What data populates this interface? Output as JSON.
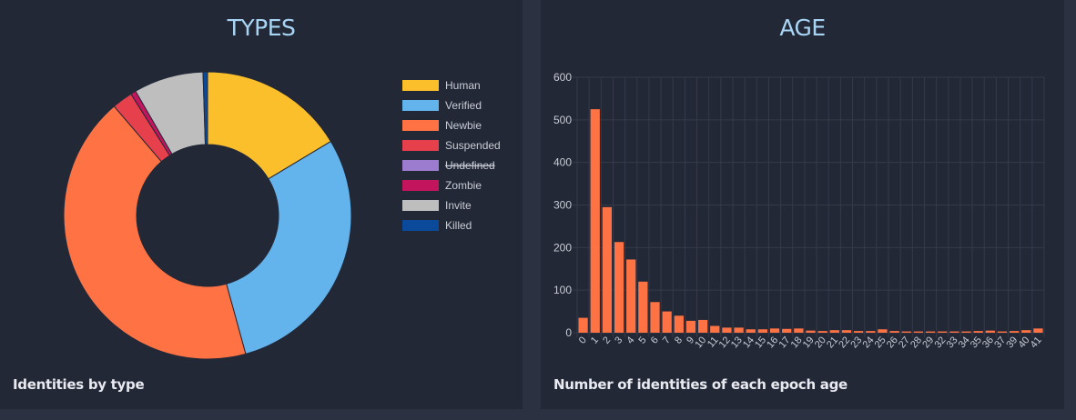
{
  "types_card": {
    "title": "TYPES",
    "caption": "Identities by type"
  },
  "age_card": {
    "title": "AGE",
    "caption": "Number of identities of each epoch age"
  },
  "chart_data": [
    {
      "type": "pie",
      "donut": true,
      "legend_position": "right",
      "labels": [
        "Human",
        "Verified",
        "Newbie",
        "Suspended",
        "Undefined",
        "Zombie",
        "Invite",
        "Killed"
      ],
      "values": [
        16.3,
        29.2,
        42.8,
        2.3,
        0,
        0.6,
        7.8,
        0.5
      ],
      "colors": [
        "#fbbf2c",
        "#63b3ed",
        "#fe7243",
        "#e7404d",
        "#9b7ccf",
        "#c2155e",
        "#bebebe",
        "#0b4a9a"
      ],
      "hidden": [
        "Undefined"
      ]
    },
    {
      "type": "bar",
      "categories": [
        "0",
        "1",
        "2",
        "3",
        "4",
        "5",
        "6",
        "7",
        "8",
        "9",
        "10",
        "11",
        "12",
        "13",
        "14",
        "15",
        "16",
        "17",
        "18",
        "19",
        "20",
        "21",
        "22",
        "23",
        "24",
        "25",
        "26",
        "27",
        "28",
        "29",
        "32",
        "33",
        "34",
        "35",
        "36",
        "37",
        "39",
        "40",
        "41"
      ],
      "values": [
        35,
        525,
        295,
        213,
        172,
        120,
        72,
        50,
        40,
        28,
        30,
        16,
        12,
        12,
        8,
        8,
        10,
        9,
        10,
        5,
        4,
        6,
        6,
        4,
        4,
        8,
        4,
        3,
        3,
        3,
        3,
        3,
        3,
        4,
        5,
        3,
        4,
        6,
        10
      ],
      "ylim": [
        0,
        600
      ],
      "yticks": [
        0,
        100,
        200,
        300,
        400,
        500,
        600
      ],
      "grid": true,
      "color": "#fe7243"
    }
  ]
}
